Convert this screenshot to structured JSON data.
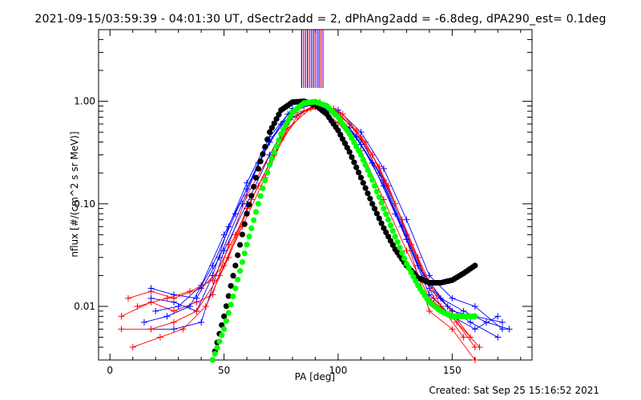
{
  "title": "2021-09-15/03:59:39 - 04:01:30 UT, dSectr2add = 2, dPhAng2add = -6.8deg, dPA290_est=  0.1deg",
  "created": "Created: Sat Sep 25 15:16:52 2021",
  "chart_data": {
    "type": "line",
    "title": "2021-09-15/03:59:39 - 04:01:30 UT, dSectr2add = 2, dPhAng2add = -6.8deg, dPA290_est=  0.1deg",
    "xlabel": "PA [deg]",
    "ylabel": "nflux [#/(cm^2 s sr MeV)]",
    "xlim": [
      -5,
      185
    ],
    "ylim": [
      0.003,
      5
    ],
    "yscale": "log",
    "xticks": [
      0,
      50,
      100,
      150
    ],
    "xtick_labels": [
      "0",
      "50",
      "100",
      "150"
    ],
    "yticks": [
      0.01,
      0.1,
      1.0
    ],
    "ytick_labels": [
      "0.01",
      "0.10",
      "1.00"
    ],
    "colors": {
      "red": "#ff0000",
      "blue": "#0000ff",
      "black": "#000000",
      "green": "#00ff00",
      "purple": "#8000c0"
    },
    "series": [
      {
        "color": "#ff0000",
        "x": [
          5,
          18,
          28,
          38,
          45,
          52,
          60,
          70,
          80,
          90,
          100,
          110,
          120,
          130,
          140,
          150,
          160
        ],
        "y": [
          0.008,
          0.011,
          0.009,
          0.011,
          0.013,
          0.04,
          0.12,
          0.3,
          0.75,
          0.88,
          0.62,
          0.33,
          0.11,
          0.035,
          0.012,
          0.008,
          0.004
        ]
      },
      {
        "color": "#0000ff",
        "x": [
          18,
          28,
          38,
          45,
          52,
          60,
          70,
          80,
          90,
          100,
          110,
          120,
          130,
          140,
          150,
          160,
          172
        ],
        "y": [
          0.012,
          0.011,
          0.009,
          0.02,
          0.06,
          0.16,
          0.45,
          0.85,
          0.95,
          0.7,
          0.42,
          0.17,
          0.05,
          0.015,
          0.009,
          0.008,
          0.007
        ]
      },
      {
        "color": "#ff0000",
        "x": [
          8,
          18,
          28,
          40,
          50,
          60,
          70,
          80,
          90,
          100,
          110,
          120,
          130,
          140,
          150,
          160
        ],
        "y": [
          0.012,
          0.014,
          0.012,
          0.015,
          0.025,
          0.09,
          0.25,
          0.7,
          0.92,
          0.78,
          0.45,
          0.16,
          0.045,
          0.009,
          0.006,
          0.003
        ]
      },
      {
        "color": "#0000ff",
        "x": [
          18,
          28,
          40,
          50,
          60,
          70,
          80,
          90,
          100,
          110,
          120,
          130,
          140,
          150,
          160,
          172
        ],
        "y": [
          0.006,
          0.006,
          0.007,
          0.035,
          0.1,
          0.3,
          0.7,
          0.9,
          0.82,
          0.5,
          0.22,
          0.07,
          0.02,
          0.012,
          0.01,
          0.006
        ]
      },
      {
        "color": "#ff0000",
        "x": [
          5,
          18,
          28,
          38,
          48,
          58,
          68,
          78,
          88,
          98,
          108,
          118,
          128,
          138,
          148,
          158
        ],
        "y": [
          0.006,
          0.006,
          0.007,
          0.009,
          0.02,
          0.06,
          0.18,
          0.55,
          0.85,
          0.85,
          0.52,
          0.23,
          0.07,
          0.02,
          0.01,
          0.005
        ]
      },
      {
        "color": "#0000ff",
        "x": [
          18,
          28,
          38,
          48,
          58,
          68,
          78,
          88,
          98,
          108,
          118,
          128,
          138,
          148,
          158,
          170
        ],
        "y": [
          0.015,
          0.013,
          0.012,
          0.03,
          0.1,
          0.35,
          0.75,
          0.97,
          0.75,
          0.45,
          0.2,
          0.06,
          0.018,
          0.01,
          0.007,
          0.005
        ]
      },
      {
        "color": "#ff0000",
        "x": [
          10,
          22,
          32,
          42,
          52,
          62,
          72,
          82,
          92,
          102,
          112,
          122,
          132,
          142,
          152,
          162
        ],
        "y": [
          0.004,
          0.005,
          0.006,
          0.01,
          0.03,
          0.11,
          0.3,
          0.72,
          0.98,
          0.75,
          0.4,
          0.15,
          0.04,
          0.012,
          0.007,
          0.004
        ]
      },
      {
        "color": "#0000ff",
        "x": [
          20,
          30,
          40,
          50,
          60,
          70,
          80,
          90,
          100,
          110,
          120,
          130,
          140,
          150,
          160,
          170
        ],
        "y": [
          0.009,
          0.01,
          0.016,
          0.05,
          0.14,
          0.4,
          0.8,
          0.95,
          0.72,
          0.38,
          0.15,
          0.045,
          0.013,
          0.008,
          0.006,
          0.008
        ]
      },
      {
        "color": "#ff0000",
        "x": [
          12,
          25,
          35,
          45,
          55,
          65,
          75,
          85,
          95,
          105,
          115,
          125,
          135,
          145,
          155
        ],
        "y": [
          0.01,
          0.012,
          0.014,
          0.018,
          0.05,
          0.15,
          0.42,
          0.8,
          0.9,
          0.6,
          0.3,
          0.1,
          0.03,
          0.01,
          0.005
        ]
      },
      {
        "color": "#0000ff",
        "x": [
          15,
          25,
          35,
          45,
          55,
          65,
          75,
          85,
          95,
          105,
          115,
          125,
          135,
          145,
          155,
          165,
          175
        ],
        "y": [
          0.007,
          0.008,
          0.01,
          0.025,
          0.08,
          0.25,
          0.6,
          0.95,
          0.85,
          0.55,
          0.25,
          0.08,
          0.025,
          0.012,
          0.009,
          0.007,
          0.006
        ]
      }
    ],
    "fits": [
      {
        "color": "#000000",
        "x": [
          45,
          50,
          55,
          60,
          65,
          70,
          75,
          80,
          85,
          90,
          95,
          100,
          105,
          110,
          115,
          120,
          125,
          130,
          135,
          140,
          145,
          150,
          155,
          160
        ],
        "y": [
          0.003,
          0.008,
          0.025,
          0.08,
          0.22,
          0.5,
          0.82,
          0.98,
          1.0,
          0.92,
          0.75,
          0.52,
          0.32,
          0.18,
          0.1,
          0.058,
          0.036,
          0.025,
          0.019,
          0.017,
          0.017,
          0.018,
          0.021,
          0.025
        ]
      },
      {
        "color": "#00ff00",
        "x": [
          45,
          50,
          55,
          60,
          65,
          70,
          75,
          80,
          85,
          90,
          95,
          100,
          105,
          110,
          115,
          120,
          125,
          130,
          135,
          140,
          145,
          150,
          155,
          160
        ],
        "y": [
          0.003,
          0.006,
          0.015,
          0.04,
          0.1,
          0.24,
          0.48,
          0.78,
          0.96,
          0.99,
          0.9,
          0.7,
          0.48,
          0.3,
          0.17,
          0.09,
          0.048,
          0.026,
          0.016,
          0.011,
          0.009,
          0.008,
          0.008,
          0.008
        ]
      }
    ]
  }
}
